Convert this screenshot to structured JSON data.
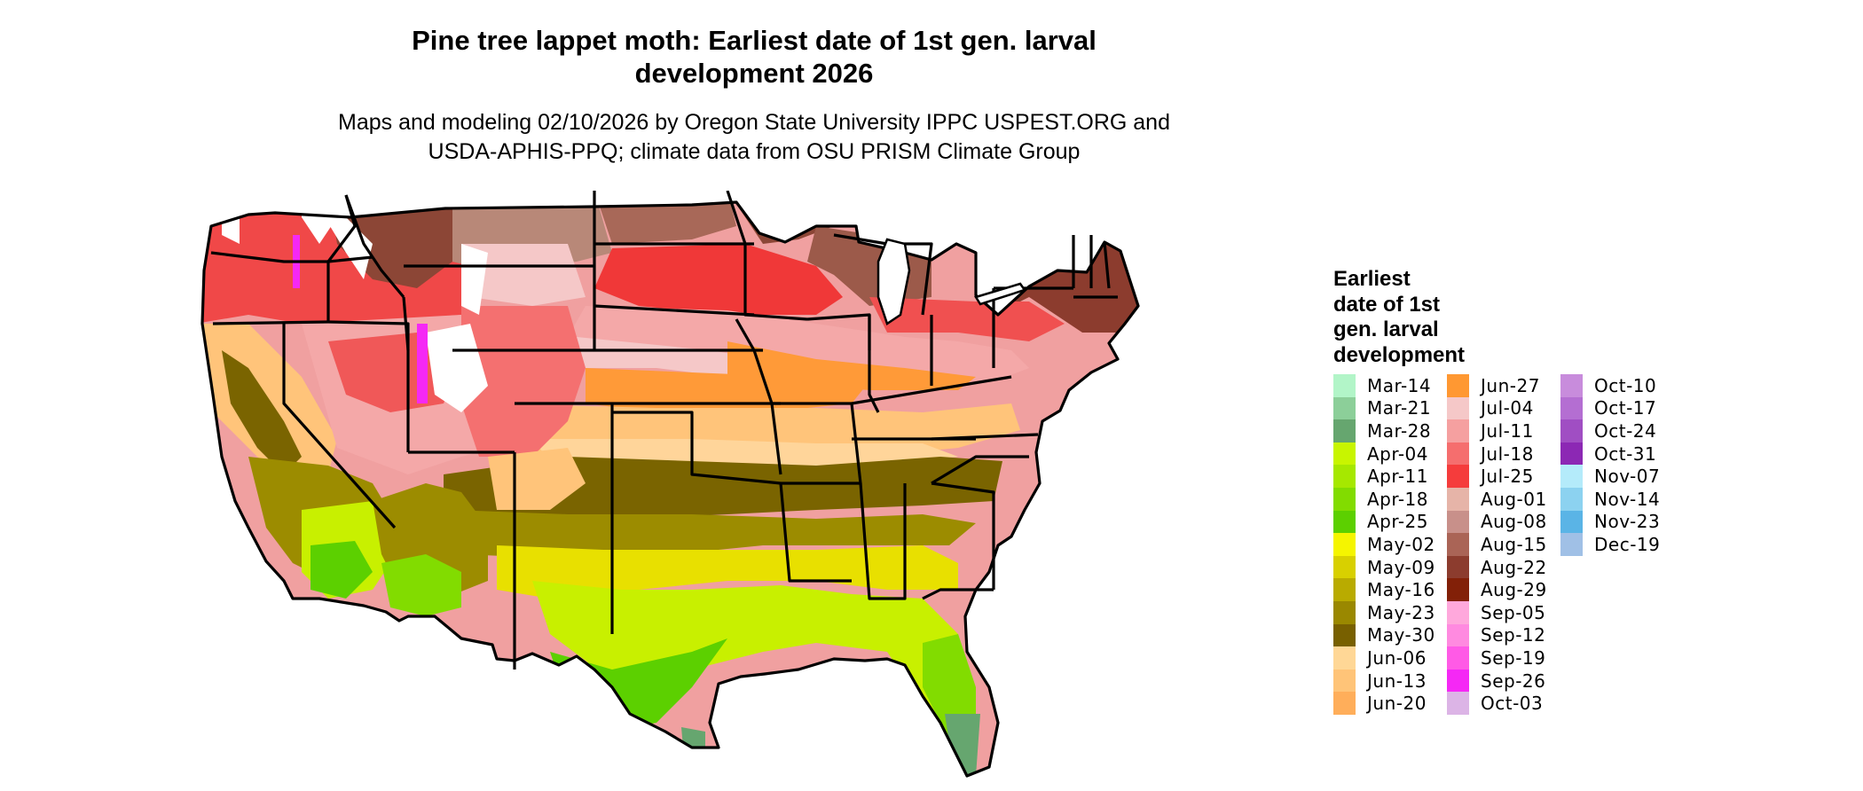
{
  "title_line1": "Pine tree lappet moth: Earliest date of 1st gen. larval",
  "title_line2": "development 2026",
  "subtitle_line1": "Maps and modeling 02/10/2026 by Oregon State University IPPC USPEST.ORG and",
  "subtitle_line2": "USDA-APHIS-PPQ; climate data from OSU PRISM Climate Group",
  "legend": {
    "title_lines": [
      "Earliest",
      "date of 1st",
      "gen. larval",
      "development"
    ],
    "items": [
      {
        "label": "Mar-14",
        "color": "#b2f5c8"
      },
      {
        "label": "Mar-21",
        "color": "#8ccf99"
      },
      {
        "label": "Mar-28",
        "color": "#66a66f"
      },
      {
        "label": "Apr-04",
        "color": "#c8f500"
      },
      {
        "label": "Apr-11",
        "color": "#a6e800"
      },
      {
        "label": "Apr-18",
        "color": "#82dc00"
      },
      {
        "label": "Apr-25",
        "color": "#5cd000"
      },
      {
        "label": "May-02",
        "color": "#f5f500"
      },
      {
        "label": "May-09",
        "color": "#d8d000"
      },
      {
        "label": "May-16",
        "color": "#b9ab00"
      },
      {
        "label": "May-23",
        "color": "#9a8800"
      },
      {
        "label": "May-30",
        "color": "#786000"
      },
      {
        "label": "Jun-06",
        "color": "#ffd796"
      },
      {
        "label": "Jun-13",
        "color": "#ffc478"
      },
      {
        "label": "Jun-20",
        "color": "#ffae5a"
      },
      {
        "label": "Jun-27",
        "color": "#ff9832"
      },
      {
        "label": "Jul-04",
        "color": "#f5c8c8"
      },
      {
        "label": "Jul-11",
        "color": "#f5a0a0"
      },
      {
        "label": "Jul-18",
        "color": "#f56e6e"
      },
      {
        "label": "Jul-25",
        "color": "#f53c3c"
      },
      {
        "label": "Aug-01",
        "color": "#e6b4a8"
      },
      {
        "label": "Aug-08",
        "color": "#c8908a"
      },
      {
        "label": "Aug-15",
        "color": "#aa6456"
      },
      {
        "label": "Aug-22",
        "color": "#8c3c2e"
      },
      {
        "label": "Aug-29",
        "color": "#822008"
      },
      {
        "label": "Sep-05",
        "color": "#ffa8dc"
      },
      {
        "label": "Sep-12",
        "color": "#ff8ae0"
      },
      {
        "label": "Sep-19",
        "color": "#ff5ae6"
      },
      {
        "label": "Sep-26",
        "color": "#f528f5"
      },
      {
        "label": "Oct-03",
        "color": "#dcb4e6"
      },
      {
        "label": "Oct-10",
        "color": "#c88cdc"
      },
      {
        "label": "Oct-17",
        "color": "#b46ed2"
      },
      {
        "label": "Oct-24",
        "color": "#a04ec3"
      },
      {
        "label": "Oct-31",
        "color": "#8c28b4"
      },
      {
        "label": "Nov-07",
        "color": "#b4ebfa"
      },
      {
        "label": "Nov-14",
        "color": "#8cd2f0"
      },
      {
        "label": "Nov-23",
        "color": "#5ab4e6"
      },
      {
        "label": "Dec-19",
        "color": "#a0c0e6"
      }
    ]
  },
  "colors": {
    "state_border": "#000000",
    "background": "#ffffff",
    "snow_white": "#ffffff",
    "dark_brown": "#7a3e2e",
    "mid_brown": "#a86858",
    "light_brown": "#c89080",
    "red": "#f03838",
    "salmon": "#f47070",
    "pink": "#f4a8a8",
    "light_pink": "#f5c8c8",
    "orange": "#ff9a38",
    "light_orange": "#ffc47a",
    "pale_orange": "#ffd59a",
    "olive_dark": "#7a6400",
    "olive": "#9c8c00",
    "yellow": "#f0f000",
    "yellow_green": "#c8f000",
    "green": "#5cd000",
    "teal_green": "#66a66f"
  }
}
